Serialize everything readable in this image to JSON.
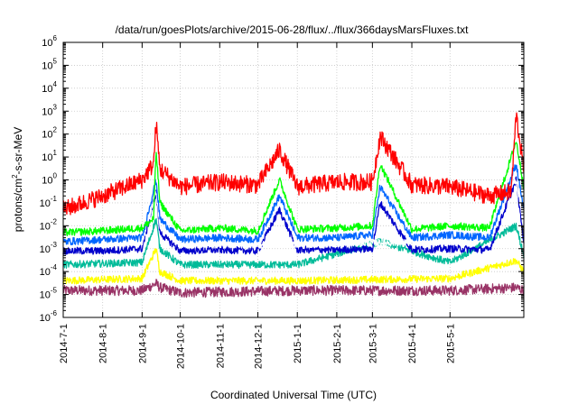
{
  "chart_data": {
    "type": "line",
    "title": "/data/run/goesPlots/archive/2015-06-28/flux/../flux/366daysMarsFluxes.txt",
    "xlabel": "Coordinated Universal Time (UTC)",
    "ylabel": "protons/cm2-s-sr-MeV",
    "ylabel_base": "protons/cm",
    "ylabel_sup": "2",
    "ylabel_rest": "-s-sr-MeV",
    "scale": {
      "x": "time",
      "y": "log"
    },
    "xlim": [
      "2014-07-01",
      "2015-06-28"
    ],
    "ylim": [
      1e-06,
      1000000.0
    ],
    "grid": true,
    "legend": "none",
    "x_ticks": [
      "2014-7-1",
      "2014-8-1",
      "2014-9-1",
      "2014-10-1",
      "2014-11-1",
      "2014-12-1",
      "2015-1-1",
      "2015-2-1",
      "2015-3-1",
      "2015-4-1",
      "2015-5-1"
    ],
    "y_ticks": [
      {
        "value": 1e-06,
        "base": "10",
        "exp": "-6"
      },
      {
        "value": 1e-05,
        "base": "10",
        "exp": "-5"
      },
      {
        "value": 0.0001,
        "base": "10",
        "exp": "-4"
      },
      {
        "value": 0.001,
        "base": "10",
        "exp": "-3"
      },
      {
        "value": 0.01,
        "base": "10",
        "exp": "-2"
      },
      {
        "value": 0.1,
        "base": "10",
        "exp": "-1"
      },
      {
        "value": 1.0,
        "base": "10",
        "exp": "0"
      },
      {
        "value": 10.0,
        "base": "10",
        "exp": "1"
      },
      {
        "value": 100.0,
        "base": "10",
        "exp": "2"
      },
      {
        "value": 1000.0,
        "base": "10",
        "exp": "3"
      },
      {
        "value": 10000.0,
        "base": "10",
        "exp": "4"
      },
      {
        "value": 100000.0,
        "base": "10",
        "exp": "5"
      },
      {
        "value": 1000000.0,
        "base": "10",
        "exp": "6"
      }
    ],
    "series": [
      {
        "color": "#ff0000",
        "x": [
          "2014-07-01",
          "2014-08-01",
          "2014-09-01",
          "2014-09-10",
          "2014-09-12",
          "2014-09-15",
          "2014-10-01",
          "2014-11-01",
          "2014-12-01",
          "2014-12-18",
          "2015-01-01",
          "2015-02-01",
          "2015-03-01",
          "2015-03-07",
          "2015-04-01",
          "2015-05-01",
          "2015-06-01",
          "2015-06-18",
          "2015-06-22",
          "2015-06-28"
        ],
        "values": [
          0.05,
          0.2,
          1.0,
          5,
          300,
          3,
          0.5,
          0.8,
          0.6,
          20,
          0.5,
          0.8,
          0.8,
          80,
          0.6,
          0.5,
          0.2,
          0.3,
          700,
          3
        ]
      },
      {
        "color": "#00ff00",
        "x": [
          "2014-07-01",
          "2014-08-01",
          "2014-09-01",
          "2014-09-10",
          "2014-09-12",
          "2014-09-15",
          "2014-10-01",
          "2014-11-01",
          "2014-12-01",
          "2014-12-18",
          "2015-01-01",
          "2015-02-01",
          "2015-03-01",
          "2015-03-07",
          "2015-04-01",
          "2015-05-01",
          "2015-06-01",
          "2015-06-22",
          "2015-06-28"
        ],
        "values": [
          0.005,
          0.006,
          0.008,
          0.02,
          20,
          0.1,
          0.006,
          0.008,
          0.006,
          1.0,
          0.007,
          0.008,
          0.01,
          5,
          0.007,
          0.01,
          0.008,
          50,
          0.5
        ]
      },
      {
        "color": "#0066ff",
        "x": [
          "2014-07-01",
          "2014-08-01",
          "2014-09-01",
          "2014-09-12",
          "2014-09-15",
          "2014-10-01",
          "2014-11-01",
          "2014-12-01",
          "2014-12-18",
          "2015-01-01",
          "2015-02-01",
          "2015-03-01",
          "2015-03-07",
          "2015-04-01",
          "2015-05-01",
          "2015-06-01",
          "2015-06-22",
          "2015-06-28"
        ],
        "values": [
          0.002,
          0.0025,
          0.003,
          1.0,
          0.02,
          0.0025,
          0.003,
          0.0025,
          0.2,
          0.003,
          0.003,
          0.004,
          0.5,
          0.003,
          0.004,
          0.003,
          5,
          0.05
        ]
      },
      {
        "color": "#ffffff",
        "x": [
          "2014-07-01",
          "2014-09-01",
          "2014-09-12",
          "2014-09-15",
          "2014-10-01",
          "2015-01-01",
          "2015-03-01",
          "2015-05-01",
          "2015-06-22",
          "2015-06-28"
        ],
        "values": [
          0.0015,
          0.002,
          0.3,
          0.01,
          0.0015,
          0.0015,
          0.0018,
          0.002,
          1.0,
          0.01
        ]
      },
      {
        "color": "#0000cc",
        "x": [
          "2014-07-01",
          "2014-08-01",
          "2014-09-01",
          "2014-09-12",
          "2014-09-15",
          "2014-10-01",
          "2014-11-01",
          "2014-12-01",
          "2014-12-18",
          "2015-01-01",
          "2015-02-01",
          "2015-03-01",
          "2015-03-07",
          "2015-04-01",
          "2015-05-01",
          "2015-06-01",
          "2015-06-22",
          "2015-06-28"
        ],
        "values": [
          0.0008,
          0.0008,
          0.001,
          0.3,
          0.005,
          0.0008,
          0.0009,
          0.0008,
          0.05,
          0.0009,
          0.0009,
          0.001,
          0.1,
          0.0009,
          0.001,
          0.0009,
          1.0,
          0.002
        ]
      },
      {
        "color": "#00bb99",
        "x": [
          "2014-07-01",
          "2014-09-01",
          "2014-09-12",
          "2014-09-15",
          "2014-10-01",
          "2015-01-01",
          "2015-03-07",
          "2015-05-01",
          "2015-06-22",
          "2015-06-28"
        ],
        "values": [
          0.0002,
          0.00025,
          0.02,
          0.001,
          0.0002,
          0.0002,
          0.002,
          0.00025,
          0.01,
          0.0005
        ]
      },
      {
        "color": "#ffff00",
        "x": [
          "2014-07-01",
          "2014-09-01",
          "2014-09-12",
          "2014-09-15",
          "2014-10-01",
          "2015-01-01",
          "2015-05-01",
          "2015-06-22",
          "2015-06-28"
        ],
        "values": [
          4e-05,
          5e-05,
          0.001,
          0.0001,
          4e-05,
          4e-05,
          5e-05,
          0.0003,
          0.0001
        ]
      },
      {
        "color": "#993366",
        "x": [
          "2014-07-01",
          "2014-09-01",
          "2014-09-12",
          "2014-09-15",
          "2014-10-01",
          "2015-01-01",
          "2015-05-01",
          "2015-06-22",
          "2015-06-28"
        ],
        "values": [
          1.5e-05,
          1.5e-05,
          3e-05,
          2e-05,
          1.2e-05,
          1.5e-05,
          1.5e-05,
          2e-05,
          1.5e-05
        ]
      }
    ]
  }
}
